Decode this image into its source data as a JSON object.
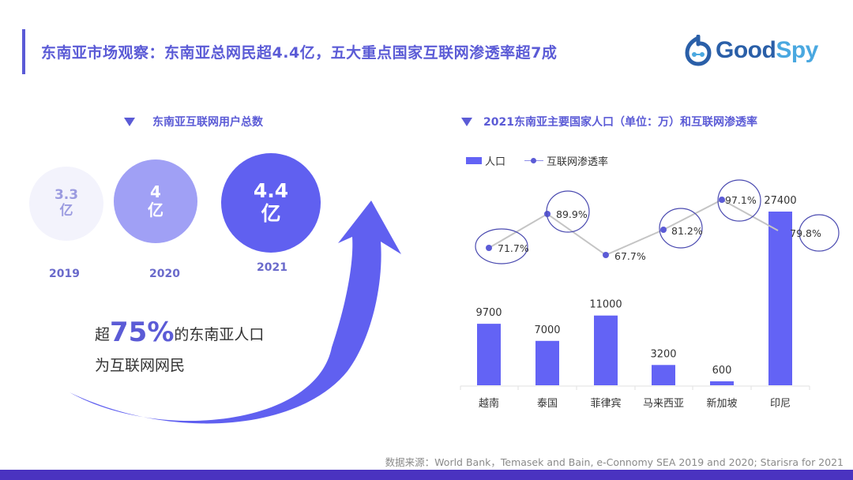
{
  "header": {
    "title": "东南亚市场观察：东南亚总网民超4.4亿，五大重点国家互联网渗透率超7成",
    "logo": {
      "part1": "Good",
      "part2": "Spy",
      "icon": "goodspy-logo-icon"
    }
  },
  "left_panel": {
    "heading": "东南亚互联网用户总数",
    "heading_icon": "triangle-down-icon",
    "users": [
      {
        "year": "2019",
        "value": "3.3",
        "unit": "亿"
      },
      {
        "year": "2020",
        "value": "4",
        "unit": "亿"
      },
      {
        "year": "2021",
        "value": "4.4",
        "unit": "亿"
      }
    ],
    "stat": {
      "prefix": "超",
      "highlight": "75%",
      "suffix": "的东南亚人口",
      "line2": "为互联网网民"
    },
    "arrow_icon": "curved-arrow-up-icon"
  },
  "right_panel": {
    "heading": "2021东南亚主要国家人口（单位：万）和互联网渗透率",
    "heading_icon": "triangle-down-icon",
    "legend": {
      "bar_label": "人口",
      "line_label": "互联网渗透率"
    }
  },
  "colors": {
    "accent": "#5b5bd6",
    "bar": "#6363f5",
    "footer": "#4a33c0",
    "line": "#c4c4c4"
  },
  "chart_data": {
    "type": "bar",
    "title": "2021东南亚主要国家人口（单位：万）和互联网渗透率",
    "categories": [
      "越南",
      "泰国",
      "菲律宾",
      "马来西亚",
      "新加坡",
      "印尼"
    ],
    "series": [
      {
        "name": "人口",
        "type": "bar",
        "unit": "万",
        "values": [
          9700,
          7000,
          11000,
          3200,
          600,
          27400
        ],
        "labels": [
          "9700",
          "7000",
          "11000",
          "3200",
          "600",
          "27400"
        ]
      },
      {
        "name": "互联网渗透率",
        "type": "line",
        "unit": "%",
        "values": [
          71.7,
          89.9,
          67.7,
          81.2,
          97.1,
          79.8
        ],
        "labels": [
          "71.7%",
          "89.9%",
          "67.7%",
          "81.2%",
          "97.1%",
          "79.8%"
        ]
      }
    ],
    "xlabel": "",
    "ylabel": "",
    "legend_position": "top-left",
    "grid": false
  },
  "footer": {
    "source": "数据来源：World Bank，Temasek and Bain, e-Connomy SEA 2019 and 2020; Starisra for 2021"
  }
}
